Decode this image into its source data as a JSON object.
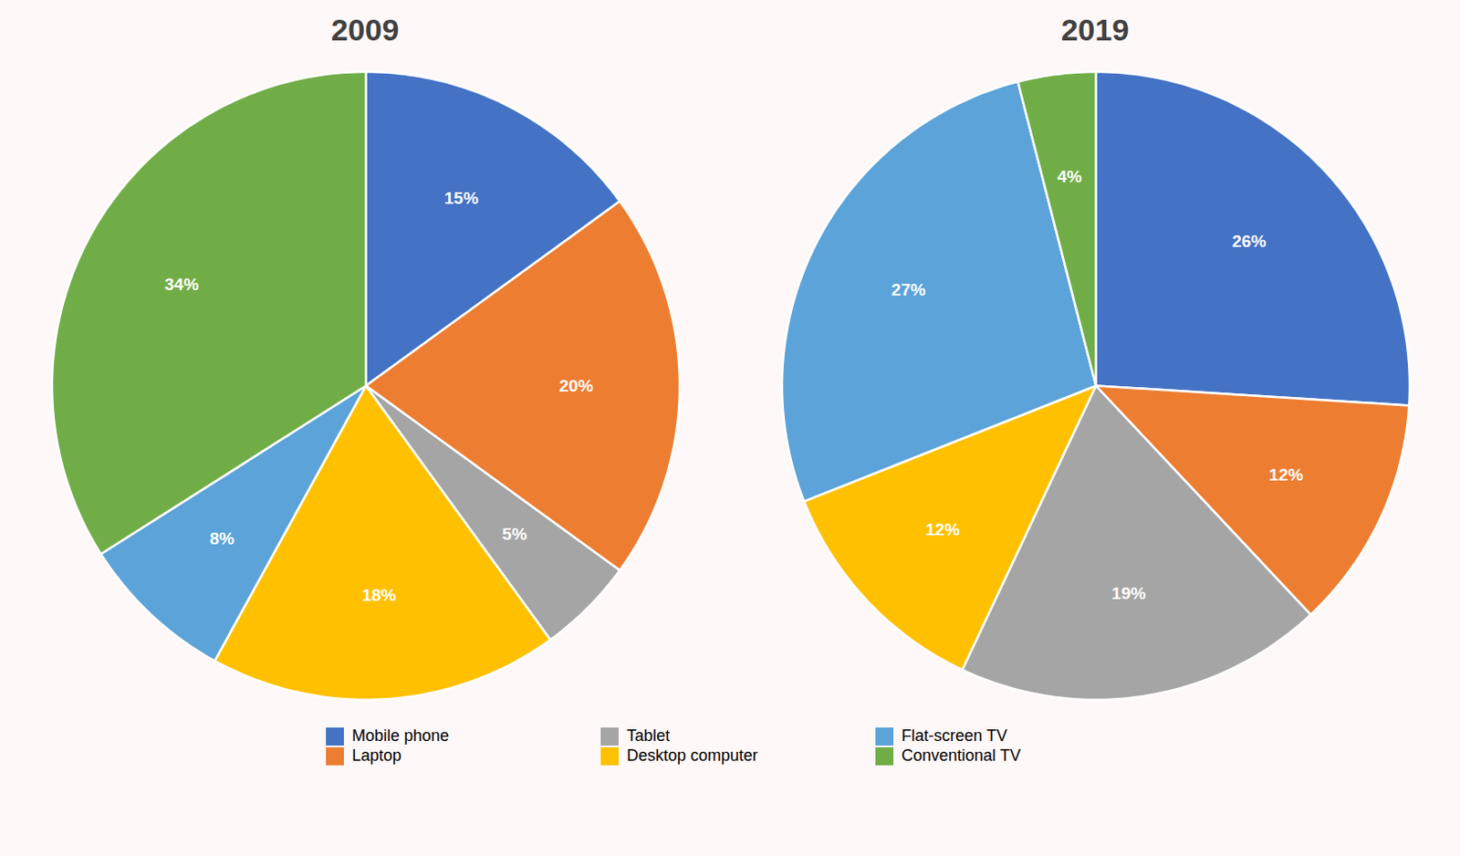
{
  "chart_data": [
    {
      "type": "pie",
      "title": "2009",
      "categories": [
        "Mobile phone",
        "Laptop",
        "Tablet",
        "Desktop computer",
        "Flat-screen TV",
        "Conventional TV"
      ],
      "values": [
        15,
        20,
        5,
        18,
        8,
        34
      ],
      "value_labels": [
        "15%",
        "20%",
        "5%",
        "18%",
        "8%",
        "34%"
      ],
      "colors": [
        "#4472C4",
        "#ED7D31",
        "#A5A5A5",
        "#FFC000",
        "#5BA3D9",
        "#70AD47"
      ],
      "data_labels": true,
      "legend": "bottom"
    },
    {
      "type": "pie",
      "title": "2019",
      "categories": [
        "Mobile phone",
        "Laptop",
        "Tablet",
        "Desktop computer",
        "Flat-screen TV",
        "Conventional TV"
      ],
      "values": [
        26,
        12,
        19,
        12,
        27,
        4
      ],
      "value_labels": [
        "26%",
        "12%",
        "19%",
        "12%",
        "27%",
        "4%"
      ],
      "colors": [
        "#4472C4",
        "#ED7D31",
        "#A5A5A5",
        "#FFC000",
        "#5BA3D9",
        "#70AD47"
      ],
      "data_labels": true,
      "legend": "bottom"
    }
  ]
}
